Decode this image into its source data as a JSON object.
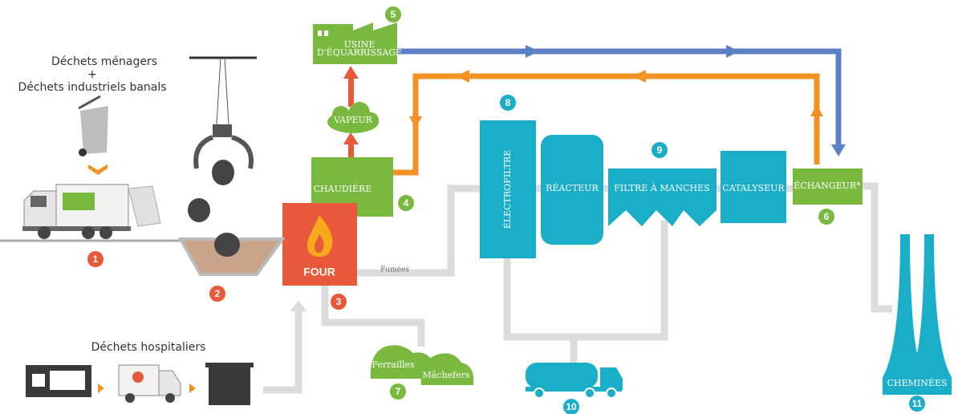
{
  "inputs": {
    "household": [
      "Déchets ménagers",
      "+",
      "Déchets industriels banals"
    ],
    "hospital": "Déchets hospitaliers"
  },
  "labels": {
    "usine": [
      "USINE",
      "D'ÉQUARRISSAGE"
    ],
    "vapeur": "VAPEUR",
    "chaudiere": "CHAUDIÈRE",
    "four": "FOUR",
    "fumees": "Fumées",
    "electrofiltre": "ÉLECTROFILTRE",
    "reacteur": "RÉACTEUR",
    "filtre": "FILTRE À MANCHES",
    "catalyseur": "CATALYSEUR",
    "echangeur": "ÉCHANGEUR*",
    "cheminees": "CHEMINÉES",
    "ferrailles": "Ferrailles",
    "machefers": "Mâchefers"
  },
  "badges": [
    1,
    2,
    3,
    4,
    5,
    6,
    7,
    8,
    9,
    10,
    11
  ]
}
